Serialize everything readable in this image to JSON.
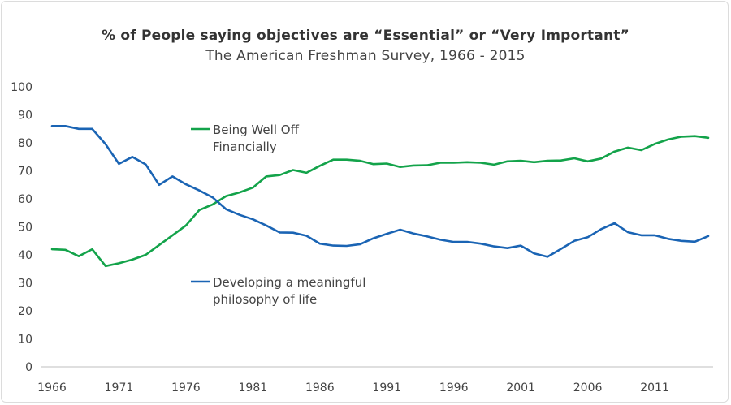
{
  "chart_data": {
    "type": "line",
    "title": "% of People saying objectives are “Essential” or “Very Important”",
    "subtitle": "The American Freshman Survey, 1966 - 2015",
    "xlabel": "",
    "ylabel": "",
    "xlim": [
      1966,
      2015
    ],
    "ylim": [
      0,
      100
    ],
    "x_ticks": [
      "1966",
      "1971",
      "1976",
      "1981",
      "1986",
      "1991",
      "1996",
      "2001",
      "2006",
      "2011"
    ],
    "y_ticks": [
      "0",
      "10",
      "20",
      "30",
      "40",
      "50",
      "60",
      "70",
      "80",
      "90",
      "100"
    ],
    "grid": false,
    "x": [
      1966,
      1967,
      1968,
      1969,
      1970,
      1971,
      1972,
      1973,
      1974,
      1975,
      1976,
      1977,
      1978,
      1979,
      1980,
      1981,
      1982,
      1983,
      1984,
      1985,
      1986,
      1987,
      1988,
      1989,
      1990,
      1991,
      1992,
      1993,
      1994,
      1995,
      1996,
      1997,
      1998,
      1999,
      2000,
      2001,
      2002,
      2003,
      2004,
      2005,
      2006,
      2007,
      2008,
      2009,
      2010,
      2011,
      2012,
      2013,
      2014,
      2015
    ],
    "series": [
      {
        "name": "Being Well Off Financially",
        "label_lines": [
          "Being Well Off",
          "Financially"
        ],
        "color": "#13a34a",
        "values": [
          42,
          41.8,
          39.5,
          42,
          36,
          37,
          38.3,
          40,
          43.5,
          47,
          50.5,
          56,
          58,
          61,
          62.3,
          64,
          68,
          68.5,
          70.3,
          69.3,
          71.8,
          74,
          74,
          73.6,
          72.4,
          72.6,
          71.4,
          71.9,
          72,
          72.9,
          72.9,
          73.1,
          72.9,
          72.2,
          73.4,
          73.6,
          73.1,
          73.6,
          73.7,
          74.5,
          73.4,
          74.4,
          76.9,
          78.3,
          77.4,
          79.6,
          81.2,
          82.2,
          82.4,
          81.8
        ]
      },
      {
        "name": "Developing a meaningful philosophy of life",
        "label_lines": [
          "Developing a meaningful",
          "philosophy of life"
        ],
        "color": "#1a64b4",
        "values": [
          86,
          86,
          85,
          85,
          79.5,
          72.5,
          75,
          72.3,
          65,
          68,
          65.2,
          63,
          60.5,
          56.3,
          54.3,
          52.7,
          50.5,
          48,
          47.9,
          46.8,
          44,
          43.3,
          43.2,
          43.8,
          45.9,
          47.5,
          49,
          47.6,
          46.6,
          45.4,
          44.6,
          44.6,
          44,
          43,
          42.4,
          43.3,
          40.5,
          39.3,
          42.1,
          45,
          46.3,
          49.2,
          51.3,
          48.1,
          47,
          47,
          45.7,
          45,
          44.7,
          46.7
        ]
      }
    ]
  }
}
